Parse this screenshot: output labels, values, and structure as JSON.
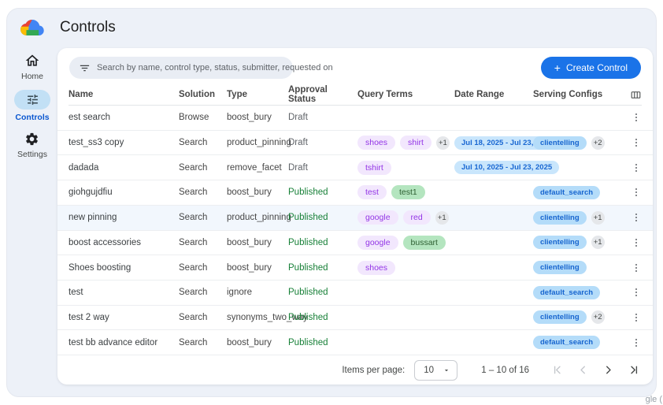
{
  "header": {
    "title": "Controls",
    "logo": "google-cloud-logo"
  },
  "sidebar": {
    "items": [
      {
        "label": "Home",
        "icon": "home-icon",
        "active": false
      },
      {
        "label": "Controls",
        "icon": "sliders-icon",
        "active": true
      },
      {
        "label": "Settings",
        "icon": "gear-icon",
        "active": false
      }
    ]
  },
  "toolbar": {
    "search_placeholder": "Search by name, control type, status, submitter, requested on",
    "search_icon": "filter-list-icon",
    "create_plus": "+",
    "create_label": "Create Control"
  },
  "table": {
    "columns": [
      "Name",
      "Solution",
      "Type",
      "Approval Status",
      "Query Terms",
      "Date Range",
      "Serving Configs"
    ],
    "columns_picker_icon": "view-columns-icon",
    "row_menu_icon": "kebab-vertical-icon",
    "rows": [
      {
        "name": "est search",
        "solution": "Browse",
        "type": "boost_bury",
        "status": "Draft",
        "status_variant": "draft",
        "query_terms": [],
        "query_more": "",
        "date_range": "",
        "serving_configs": [],
        "serving_more": "",
        "highlighted": false
      },
      {
        "name": "test_ss3 copy",
        "solution": "Search",
        "type": "product_pinning",
        "status": "Draft",
        "status_variant": "draft",
        "query_terms": [
          {
            "text": "shoes",
            "variant": "purple"
          },
          {
            "text": "shirt",
            "variant": "purple"
          }
        ],
        "query_more": "+1",
        "date_range": "Jul 18, 2025 - Jul 23, 2025",
        "serving_configs": [
          "clientelling"
        ],
        "serving_more": "+2",
        "highlighted": false
      },
      {
        "name": "dadada",
        "solution": "Search",
        "type": "remove_facet",
        "status": "Draft",
        "status_variant": "draft",
        "query_terms": [
          {
            "text": "tshirt",
            "variant": "purple"
          }
        ],
        "query_more": "",
        "date_range": "Jul 10, 2025 - Jul 23, 2025",
        "serving_configs": [],
        "serving_more": "",
        "highlighted": false
      },
      {
        "name": "giohgujdfiu",
        "solution": "Search",
        "type": "boost_bury",
        "status": "Published",
        "status_variant": "published",
        "query_terms": [
          {
            "text": "test",
            "variant": "purple"
          },
          {
            "text": "test1",
            "variant": "green"
          }
        ],
        "query_more": "",
        "date_range": "",
        "serving_configs": [
          "default_search"
        ],
        "serving_more": "",
        "highlighted": false
      },
      {
        "name": "new pinning",
        "solution": "Search",
        "type": "product_pinning",
        "status": "Published",
        "status_variant": "published",
        "query_terms": [
          {
            "text": "google",
            "variant": "purple"
          },
          {
            "text": "red",
            "variant": "purple"
          }
        ],
        "query_more": "+1",
        "date_range": "",
        "serving_configs": [
          "clientelling"
        ],
        "serving_more": "+1",
        "highlighted": true
      },
      {
        "name": "boost accessories",
        "solution": "Search",
        "type": "boost_bury",
        "status": "Published",
        "status_variant": "published",
        "query_terms": [
          {
            "text": "google",
            "variant": "purple"
          },
          {
            "text": "bussart",
            "variant": "green"
          }
        ],
        "query_more": "",
        "date_range": "",
        "serving_configs": [
          "clientelling"
        ],
        "serving_more": "+1",
        "highlighted": false
      },
      {
        "name": "Shoes boosting",
        "solution": "Search",
        "type": "boost_bury",
        "status": "Published",
        "status_variant": "published",
        "query_terms": [
          {
            "text": "shoes",
            "variant": "purple"
          }
        ],
        "query_more": "",
        "date_range": "",
        "serving_configs": [
          "clientelling"
        ],
        "serving_more": "",
        "highlighted": false
      },
      {
        "name": "test",
        "solution": "Search",
        "type": "ignore",
        "status": "Published",
        "status_variant": "published",
        "query_terms": [],
        "query_more": "",
        "date_range": "",
        "serving_configs": [
          "default_search"
        ],
        "serving_more": "",
        "highlighted": false
      },
      {
        "name": "test 2 way",
        "solution": "Search",
        "type": "synonyms_two_way",
        "status": "Published",
        "status_variant": "published",
        "query_terms": [],
        "query_more": "",
        "date_range": "",
        "serving_configs": [
          "clientelling"
        ],
        "serving_more": "+2",
        "highlighted": false
      },
      {
        "name": "test bb advance editor",
        "solution": "Search",
        "type": "boost_bury",
        "status": "Published",
        "status_variant": "published",
        "query_terms": [],
        "query_more": "",
        "date_range": "",
        "serving_configs": [
          "default_search"
        ],
        "serving_more": "",
        "highlighted": false
      }
    ]
  },
  "pagination": {
    "items_per_page_label": "Items per page:",
    "page_size": "10",
    "range_label": "1 – 10 of 16",
    "nav_icons": [
      "first-page-icon",
      "chevron-left-icon",
      "chevron-right-icon",
      "last-page-icon"
    ]
  },
  "watermark": "gle (",
  "colors": {
    "accent_blue": "#1a73e8",
    "active_nav_blue": "#0b57d0",
    "published_green": "#188038",
    "draft_gray": "#5f6368",
    "window_bg": "#edf1f8",
    "query_chip_purple_bg": "#f2e7fd",
    "query_chip_purple_text": "#9334e6",
    "query_chip_green_bg": "#b4e5bf",
    "date_chip_bg": "#c9e6fc",
    "serving_chip_bg": "#b4dcf9",
    "row_highlight": "#f2f7fd"
  }
}
